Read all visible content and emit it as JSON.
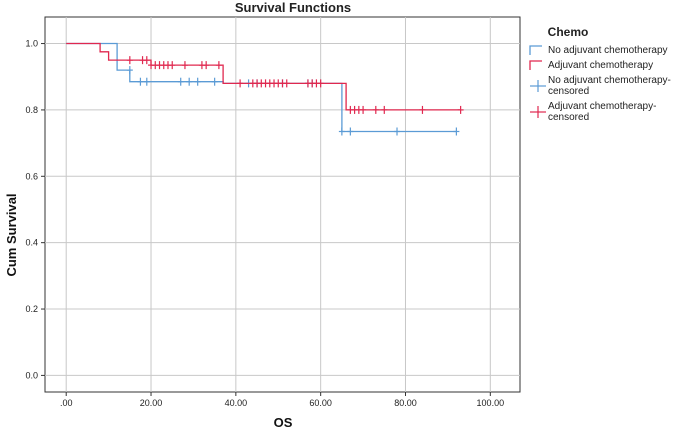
{
  "chart_data": {
    "type": "line",
    "title": "Survival Functions",
    "xlabel": "OS",
    "ylabel": "Cum Survival",
    "xlim": [
      -5,
      107
    ],
    "ylim": [
      -0.05,
      1.08
    ],
    "x_ticks": [
      0,
      20,
      40,
      60,
      80,
      100
    ],
    "x_tick_labels": [
      ".00",
      "20.00",
      "40.00",
      "60.00",
      "80.00",
      "100.00"
    ],
    "y_ticks": [
      0.0,
      0.2,
      0.4,
      0.6,
      0.8,
      1.0
    ],
    "y_tick_labels": [
      "0.0",
      "0.2",
      "0.4",
      "0.6",
      "0.8",
      "1.0"
    ],
    "grid": true,
    "legend_title": "Chemo",
    "legend_position": "right",
    "legend": [
      {
        "label": "No adjuvant chemotherapy",
        "kind": "line",
        "color": "#5b9bd5"
      },
      {
        "label": "Adjuvant chemotherapy",
        "kind": "line",
        "color": "#e0284f"
      },
      {
        "label": "No adjuvant chemotherapy-censored",
        "lines": [
          "No adjuvant chemotherapy-",
          "censored"
        ],
        "kind": "censor",
        "color": "#5b9bd5"
      },
      {
        "label": "Adjuvant chemotherapy-censored",
        "lines": [
          "Adjuvant chemotherapy-",
          "censored"
        ],
        "kind": "censor",
        "color": "#e0284f"
      }
    ],
    "series": [
      {
        "name": "No adjuvant chemotherapy",
        "color": "#5b9bd5",
        "step_x": [
          0,
          12,
          15,
          17,
          37,
          65,
          92
        ],
        "step_y": [
          1.0,
          0.92,
          0.885,
          0.885,
          0.88,
          0.735,
          0.735
        ],
        "censored": [
          {
            "x": 15,
            "y": 0.92
          },
          {
            "x": 17.5,
            "y": 0.885
          },
          {
            "x": 19,
            "y": 0.885
          },
          {
            "x": 27,
            "y": 0.885
          },
          {
            "x": 29,
            "y": 0.885
          },
          {
            "x": 31,
            "y": 0.885
          },
          {
            "x": 35,
            "y": 0.885
          },
          {
            "x": 43,
            "y": 0.88
          },
          {
            "x": 45,
            "y": 0.88
          },
          {
            "x": 51,
            "y": 0.88
          },
          {
            "x": 57,
            "y": 0.88
          },
          {
            "x": 58,
            "y": 0.88
          },
          {
            "x": 65,
            "y": 0.735
          },
          {
            "x": 67,
            "y": 0.735
          },
          {
            "x": 78,
            "y": 0.735
          },
          {
            "x": 92,
            "y": 0.735
          }
        ]
      },
      {
        "name": "Adjuvant chemotherapy",
        "color": "#e0284f",
        "step_x": [
          0,
          8,
          10,
          20,
          37,
          66,
          93
        ],
        "step_y": [
          1.0,
          0.975,
          0.95,
          0.935,
          0.88,
          0.8,
          0.8
        ],
        "censored": [
          {
            "x": 15,
            "y": 0.95
          },
          {
            "x": 18,
            "y": 0.95
          },
          {
            "x": 19,
            "y": 0.95
          },
          {
            "x": 20,
            "y": 0.935
          },
          {
            "x": 21,
            "y": 0.935
          },
          {
            "x": 22,
            "y": 0.935
          },
          {
            "x": 23,
            "y": 0.935
          },
          {
            "x": 24,
            "y": 0.935
          },
          {
            "x": 25,
            "y": 0.935
          },
          {
            "x": 28,
            "y": 0.935
          },
          {
            "x": 32,
            "y": 0.935
          },
          {
            "x": 33,
            "y": 0.935
          },
          {
            "x": 36,
            "y": 0.935
          },
          {
            "x": 41,
            "y": 0.88
          },
          {
            "x": 44,
            "y": 0.88
          },
          {
            "x": 45,
            "y": 0.88
          },
          {
            "x": 46,
            "y": 0.88
          },
          {
            "x": 47,
            "y": 0.88
          },
          {
            "x": 48,
            "y": 0.88
          },
          {
            "x": 49,
            "y": 0.88
          },
          {
            "x": 50,
            "y": 0.88
          },
          {
            "x": 51,
            "y": 0.88
          },
          {
            "x": 52,
            "y": 0.88
          },
          {
            "x": 57,
            "y": 0.88
          },
          {
            "x": 58,
            "y": 0.88
          },
          {
            "x": 59,
            "y": 0.88
          },
          {
            "x": 60,
            "y": 0.88
          },
          {
            "x": 67,
            "y": 0.8
          },
          {
            "x": 68,
            "y": 0.8
          },
          {
            "x": 69,
            "y": 0.8
          },
          {
            "x": 70,
            "y": 0.8
          },
          {
            "x": 73,
            "y": 0.8
          },
          {
            "x": 75,
            "y": 0.8
          },
          {
            "x": 84,
            "y": 0.8
          },
          {
            "x": 93,
            "y": 0.8
          }
        ]
      }
    ]
  }
}
